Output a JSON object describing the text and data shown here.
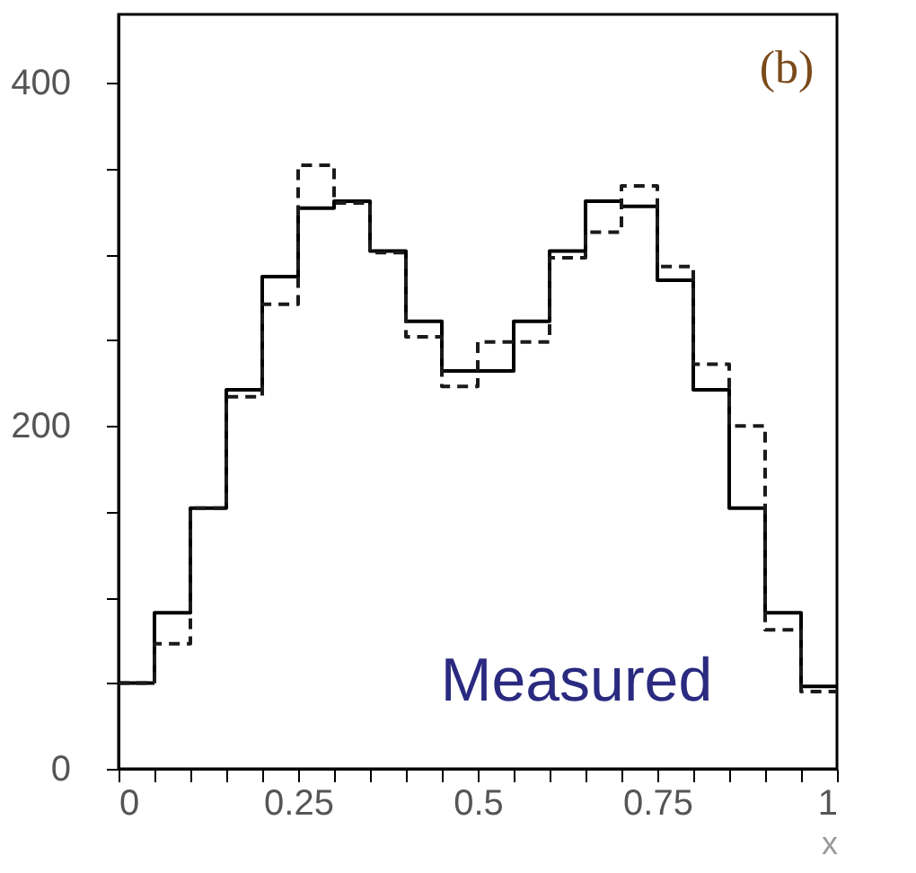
{
  "chart_data": {
    "type": "histogram",
    "xlabel": "x",
    "bins": [
      0,
      0.05,
      0.1,
      0.15,
      0.2,
      0.25,
      0.3,
      0.35,
      0.4,
      0.45,
      0.5,
      0.55,
      0.6,
      0.65,
      0.7,
      0.75,
      0.8,
      0.85,
      0.9,
      0.95,
      1
    ],
    "series": [
      {
        "color": "#000000",
        "line_style": "solid",
        "values": [
          50,
          91,
          152,
          221,
          287,
          327,
          331,
          302,
          261,
          232,
          232,
          261,
          302,
          331,
          328,
          285,
          221,
          152,
          91,
          48
        ]
      },
      {
        "color": "#1a1a1a",
        "line_style": "dashed",
        "values": [
          50,
          73,
          152,
          217,
          271,
          352,
          330,
          301,
          252,
          223,
          249,
          249,
          298,
          313,
          340,
          293,
          236,
          200,
          81,
          45
        ]
      }
    ],
    "xlim": [
      0,
      1
    ],
    "ylim": [
      0,
      440
    ],
    "xticks": [
      0,
      {
        "value": 0.05,
        "label": null
      },
      {
        "value": 0.1,
        "label": null
      },
      {
        "value": 0.15,
        "label": null
      },
      {
        "value": 0.2,
        "label": null
      },
      0.25,
      {
        "value": 0.3,
        "label": null
      },
      {
        "value": 0.35,
        "label": null
      },
      {
        "value": 0.4,
        "label": null
      },
      {
        "value": 0.45,
        "label": null
      },
      0.5,
      {
        "value": 0.55,
        "label": null
      },
      {
        "value": 0.6,
        "label": null
      },
      {
        "value": 0.65,
        "label": null
      },
      {
        "value": 0.7,
        "label": null
      },
      0.75,
      {
        "value": 0.8,
        "label": null
      },
      {
        "value": 0.85,
        "label": null
      },
      {
        "value": 0.9,
        "label": null
      },
      {
        "value": 0.95,
        "label": null
      },
      1
    ],
    "yticks": [
      0,
      {
        "value": 50,
        "label": null
      },
      {
        "value": 100,
        "label": null
      },
      {
        "value": 150,
        "label": null
      },
      200,
      {
        "value": 250,
        "label": null
      },
      {
        "value": 300,
        "label": null
      },
      {
        "value": 350,
        "label": null
      },
      400
    ],
    "annotations": [
      "(b)",
      "Measured"
    ],
    "grid": false
  }
}
